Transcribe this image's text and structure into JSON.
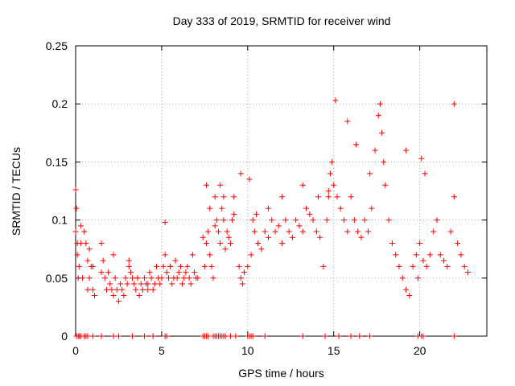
{
  "chart_data": {
    "type": "scatter",
    "title": "Day 333 of 2019, SRMTID for receiver wind",
    "xlabel": "GPS time / hours",
    "ylabel": "SRMTID / TECUs",
    "xlim": [
      0,
      23.9
    ],
    "ylim": [
      0,
      0.25
    ],
    "xticks": [
      0,
      5,
      10,
      15,
      20
    ],
    "xtick_labels": [
      "0",
      "5",
      "10",
      "15",
      "20"
    ],
    "yticks": [
      0,
      0.05,
      0.1,
      0.15,
      0.2,
      0.25
    ],
    "ytick_labels": [
      "0",
      "0.05",
      "0.1",
      "0.15",
      "0.2",
      "0.25"
    ],
    "grid": true,
    "marker": "+",
    "color": "#ff0000",
    "series": [
      {
        "name": "SRMTID",
        "x": [
          0.0,
          0.05,
          0.1,
          0.15,
          0.2,
          0.3,
          0.4,
          0.5,
          0.6,
          0.7,
          0.8,
          0.9,
          1.0,
          1.1,
          1.5,
          1.6,
          1.7,
          1.8,
          1.9,
          2.0,
          2.1,
          2.2,
          2.3,
          2.4,
          2.5,
          2.6,
          2.7,
          2.8,
          2.9,
          3.0,
          3.1,
          3.2,
          3.3,
          3.4,
          3.5,
          3.6,
          3.7,
          3.8,
          3.9,
          4.0,
          4.1,
          4.2,
          4.3,
          4.4,
          4.5,
          4.6,
          4.7,
          4.8,
          4.9,
          5.0,
          5.1,
          5.2,
          5.3,
          5.4,
          5.5,
          5.6,
          5.7,
          5.8,
          5.9,
          6.0,
          6.1,
          6.2,
          6.3,
          6.4,
          6.5,
          6.6,
          6.7,
          6.8,
          6.9,
          7.0,
          7.1,
          7.5,
          7.6,
          7.7,
          7.8,
          7.9,
          8.0,
          8.1,
          8.2,
          8.3,
          8.4,
          8.5,
          8.6,
          8.7,
          8.8,
          8.9,
          9.0,
          9.1,
          9.2,
          9.5,
          9.6,
          9.7,
          9.8,
          10.0,
          10.2,
          10.4,
          10.6,
          10.8,
          11.0,
          11.2,
          11.4,
          11.6,
          11.8,
          12.0,
          12.2,
          12.4,
          12.6,
          12.8,
          13.0,
          13.2,
          13.4,
          13.6,
          13.8,
          14.0,
          14.2,
          14.4,
          14.6,
          14.7,
          14.8,
          14.9,
          15.0,
          15.2,
          15.4,
          15.6,
          15.8,
          16.0,
          16.2,
          16.4,
          16.6,
          16.8,
          17.0,
          17.2,
          17.4,
          17.6,
          17.7,
          17.8,
          17.9,
          18.0,
          18.2,
          18.4,
          18.6,
          18.8,
          19.0,
          19.2,
          19.4,
          19.6,
          19.8,
          20.0,
          20.2,
          20.4,
          20.6,
          20.8,
          21.0,
          21.2,
          21.4,
          21.6,
          21.8,
          22.0,
          22.2,
          22.4,
          22.6,
          22.8,
          0.0,
          0.1,
          0.3,
          0.7,
          0.8,
          1.0,
          1.5,
          2.2,
          3.1,
          3.6,
          4.2,
          5.2,
          5.5,
          7.4,
          7.6,
          7.8,
          8.1,
          8.4,
          8.6,
          9.2,
          9.6,
          10.1,
          10.3,
          10.5,
          11.2,
          12.0,
          13.2,
          14.1,
          14.7,
          15.1,
          15.8,
          16.3,
          17.1,
          19.2,
          19.9,
          20.1,
          20.3,
          22.0
        ],
        "y": [
          0.126,
          0.11,
          0.07,
          0.05,
          0.06,
          0.08,
          0.05,
          0.09,
          0.08,
          0.04,
          0.05,
          0.06,
          0.04,
          0.035,
          0.08,
          0.065,
          0.05,
          0.04,
          0.055,
          0.045,
          0.04,
          0.035,
          0.05,
          0.04,
          0.03,
          0.045,
          0.04,
          0.035,
          0.05,
          0.045,
          0.065,
          0.055,
          0.05,
          0.045,
          0.04,
          0.05,
          0.035,
          0.045,
          0.04,
          0.05,
          0.045,
          0.04,
          0.055,
          0.05,
          0.04,
          0.045,
          0.06,
          0.05,
          0.045,
          0.05,
          0.06,
          0.07,
          0.055,
          0.05,
          0.06,
          0.045,
          0.05,
          0.065,
          0.05,
          0.055,
          0.06,
          0.045,
          0.05,
          0.055,
          0.06,
          0.05,
          0.045,
          0.07,
          0.055,
          0.05,
          0.05,
          0.06,
          0.08,
          0.09,
          0.07,
          0.06,
          0.05,
          0.12,
          0.1,
          0.09,
          0.08,
          0.11,
          0.1,
          0.075,
          0.09,
          0.085,
          0.08,
          0.1,
          0.12,
          0.06,
          0.05,
          0.045,
          0.055,
          0.06,
          0.07,
          0.09,
          0.08,
          0.075,
          0.09,
          0.085,
          0.1,
          0.09,
          0.095,
          0.08,
          0.1,
          0.09,
          0.085,
          0.1,
          0.095,
          0.09,
          0.11,
          0.105,
          0.1,
          0.09,
          0.085,
          0.06,
          0.1,
          0.12,
          0.14,
          0.15,
          0.13,
          0.12,
          0.11,
          0.1,
          0.09,
          0.12,
          0.1,
          0.09,
          0.085,
          0.1,
          0.09,
          0.11,
          0.16,
          0.19,
          0.2,
          0.175,
          0.15,
          0.13,
          0.1,
          0.08,
          0.07,
          0.06,
          0.05,
          0.04,
          0.035,
          0.06,
          0.07,
          0.08,
          0.065,
          0.06,
          0.07,
          0.09,
          0.1,
          0.07,
          0.065,
          0.06,
          0.09,
          0.12,
          0.08,
          0.07,
          0.06,
          0.055,
          0.09,
          0.08,
          0.095,
          0.065,
          0.075,
          0.06,
          0.055,
          0.07,
          0.06,
          0.05,
          0.045,
          0.098,
          0.06,
          0.085,
          0.13,
          0.11,
          0.095,
          0.13,
          0.12,
          0.105,
          0.14,
          0.135,
          0.1,
          0.105,
          0.11,
          0.12,
          0.13,
          0.12,
          0.125,
          0.203,
          0.185,
          0.165,
          0.14,
          0.16,
          0.05,
          0.153,
          0.14,
          0.2
        ]
      }
    ],
    "zero_markers_x": [
      0.05,
      0.15,
      0.2,
      0.3,
      0.5,
      0.6,
      0.7,
      1.0,
      1.5,
      2.2,
      2.5,
      3.3,
      4.0,
      4.5,
      5.2,
      5.3,
      7.4,
      7.5,
      7.6,
      7.7,
      8.0,
      8.1,
      8.2,
      8.3,
      8.4,
      8.5,
      8.6,
      8.7,
      9.0,
      9.3,
      10.0,
      10.1,
      10.2,
      10.3,
      11.0,
      13.2,
      14.5,
      15.3,
      16.0,
      16.5,
      17.1,
      19.9,
      20.1,
      20.2,
      22.0
    ]
  }
}
